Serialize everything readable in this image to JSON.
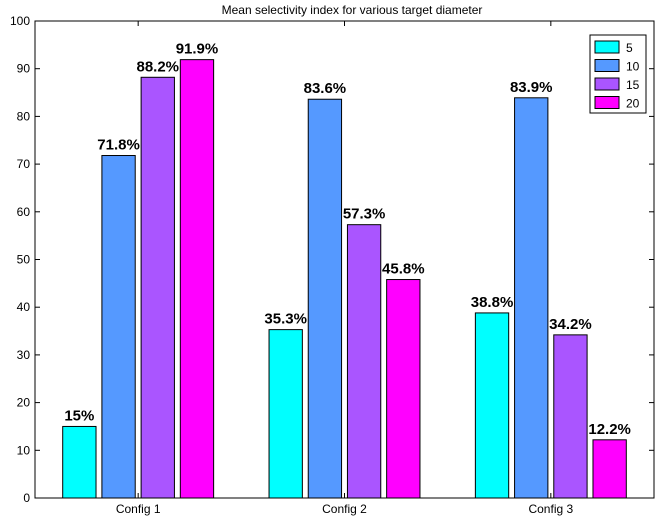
{
  "chart_data": {
    "type": "bar",
    "title": "Mean selectivity index for various target diameter",
    "xlabel": "",
    "ylabel": "",
    "categories": [
      "Config 1",
      "Config 2",
      "Config 3"
    ],
    "ylim": [
      0,
      100
    ],
    "yticks": [
      0,
      10,
      20,
      30,
      40,
      50,
      60,
      70,
      80,
      90,
      100
    ],
    "legend_position": "top-right",
    "grid": false,
    "series": [
      {
        "name": "5",
        "color": "#00ffff",
        "values": [
          15,
          35.3,
          38.8
        ],
        "labels": [
          "15%",
          "35.3%",
          "38.8%"
        ]
      },
      {
        "name": "10",
        "color": "#5599ff",
        "values": [
          71.8,
          83.6,
          83.9
        ],
        "labels": [
          "71.8%",
          "83.6%",
          "83.9%"
        ]
      },
      {
        "name": "15",
        "color": "#aa55ff",
        "values": [
          88.2,
          57.3,
          34.2
        ],
        "labels": [
          "88.2%",
          "57.3%",
          "34.2%"
        ]
      },
      {
        "name": "20",
        "color": "#ff00ff",
        "values": [
          91.9,
          45.8,
          12.2
        ],
        "labels": [
          "91.9%",
          "45.8%",
          "12.2%"
        ]
      }
    ]
  }
}
